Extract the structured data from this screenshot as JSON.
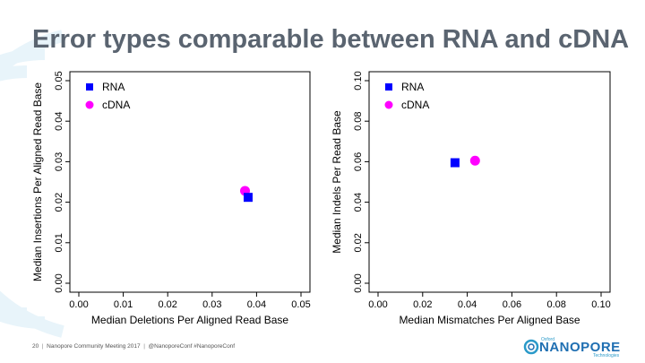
{
  "slide": {
    "title": "Error types comparable between RNA and cDNA",
    "footer": {
      "page": "20",
      "event": "Nanopore Community Meeting 2017",
      "handle": "@NanoporeConf #NanoporeConf"
    },
    "logo": {
      "small": "Oxford",
      "main": "NANOPORE",
      "sub": "Technologies"
    }
  },
  "chart_data": [
    {
      "type": "scatter",
      "xlabel": "Median Deletions Per Aligned Read Base",
      "ylabel": "Median Insertions Per Aligned Read Base",
      "xlim": [
        0,
        0.05
      ],
      "ylim": [
        0,
        0.05
      ],
      "xticks": [
        "0.00",
        "0.01",
        "0.02",
        "0.03",
        "0.04",
        "0.05"
      ],
      "yticks": [
        "0.00",
        "0.01",
        "0.02",
        "0.03",
        "0.04",
        "0.05"
      ],
      "legend_position": "top-left",
      "series": [
        {
          "name": "RNA",
          "marker": "square",
          "color": "#0000ff",
          "points": [
            [
              0.0381,
              0.0212
            ]
          ]
        },
        {
          "name": "cDNA",
          "marker": "circle",
          "color": "#ff00ff",
          "points": [
            [
              0.0374,
              0.0228
            ]
          ]
        }
      ]
    },
    {
      "type": "scatter",
      "xlabel": "Median Mismatches Per Aligned Base",
      "ylabel": "Median Indels Per Read Base",
      "xlim": [
        0,
        0.1
      ],
      "ylim": [
        0,
        0.1
      ],
      "xticks": [
        "0.00",
        "0.02",
        "0.04",
        "0.06",
        "0.08",
        "0.10"
      ],
      "yticks": [
        "0.00",
        "0.02",
        "0.04",
        "0.06",
        "0.08",
        "0.10"
      ],
      "legend_position": "top-left",
      "series": [
        {
          "name": "RNA",
          "marker": "square",
          "color": "#0000ff",
          "points": [
            [
              0.0345,
              0.0595
            ]
          ]
        },
        {
          "name": "cDNA",
          "marker": "circle",
          "color": "#ff00ff",
          "points": [
            [
              0.0435,
              0.0605
            ]
          ]
        }
      ]
    }
  ]
}
